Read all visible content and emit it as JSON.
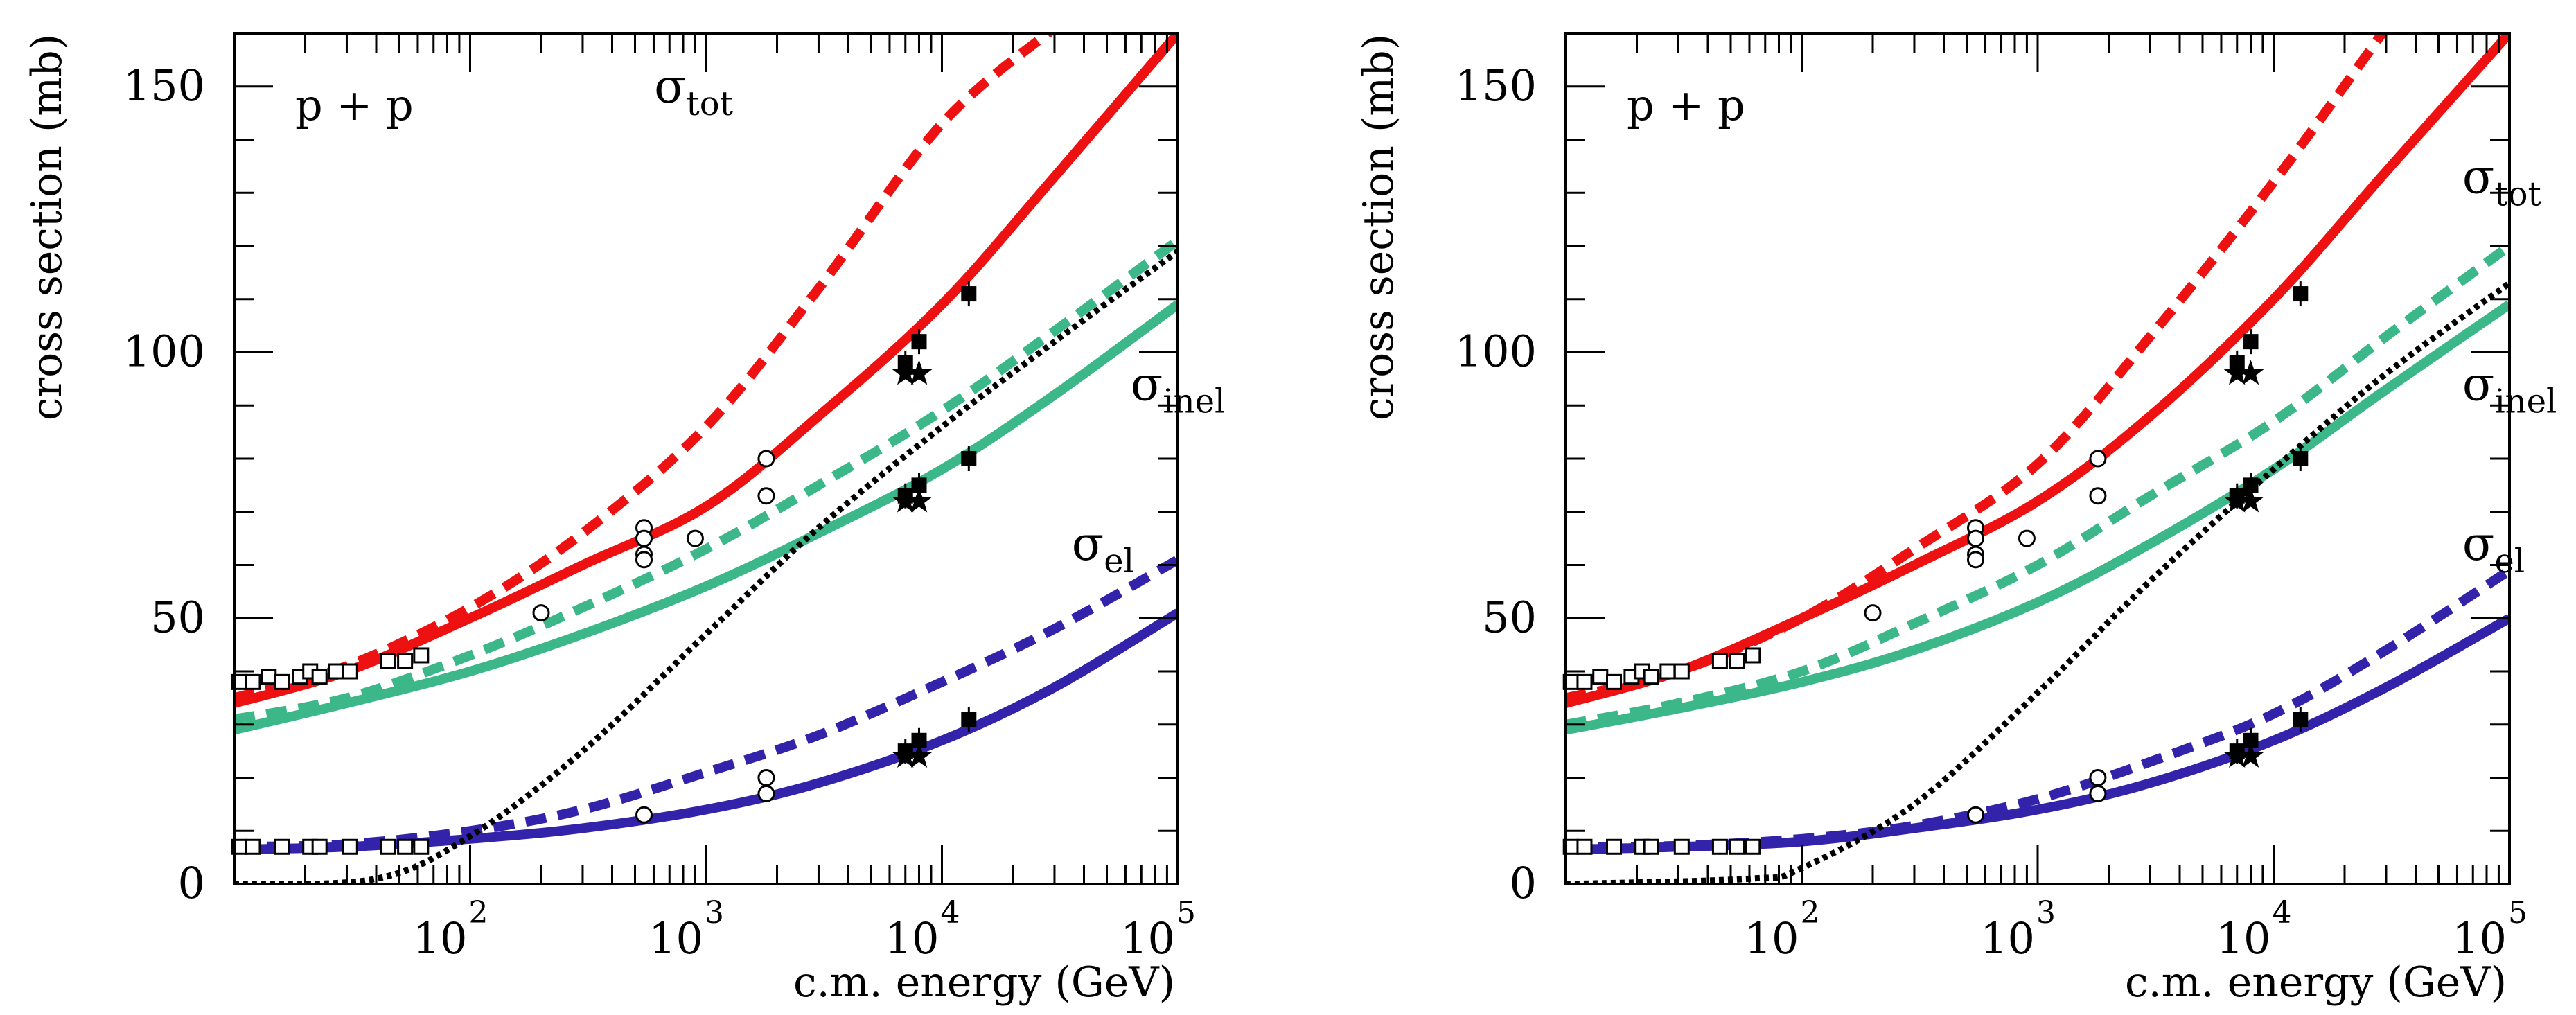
{
  "chart_data": [
    {
      "type": "line",
      "id": "left",
      "panel_label": "p + p",
      "xlabel": "c.m. energy (GeV)",
      "ylabel": "cross section (mb)",
      "x_scale": "log",
      "xlim": [
        10,
        100000
      ],
      "ylim": [
        0,
        160
      ],
      "x_tick_labels": [
        {
          "value": 100,
          "base": "10",
          "exp": "2"
        },
        {
          "value": 1000,
          "base": "10",
          "exp": "3"
        },
        {
          "value": 10000,
          "base": "10",
          "exp": "4"
        },
        {
          "value": 100000,
          "base": "10",
          "exp": "5"
        }
      ],
      "y_ticks": [
        0,
        50,
        100,
        150
      ],
      "curve_labels": [
        {
          "base": "σ",
          "sub": "tot",
          "at": [
            2.78,
            147
          ],
          "color": "#000000"
        },
        {
          "base": "σ",
          "sub": "inel",
          "at": [
            4.8,
            91
          ],
          "color": "#000000"
        },
        {
          "base": "σ",
          "sub": "el",
          "at": [
            4.55,
            61
          ],
          "color": "#000000"
        }
      ],
      "series": [
        {
          "name": "sigma_tot solid",
          "color": "#ee1111",
          "style": "solid",
          "x": [
            10,
            30,
            100,
            300,
            1000,
            3000,
            10000,
            30000,
            100000
          ],
          "values": [
            34,
            40,
            50,
            60,
            71,
            88,
            109,
            133,
            160
          ]
        },
        {
          "name": "sigma_tot dashed",
          "color": "#ee1111",
          "style": "dashed",
          "x": [
            10,
            30,
            100,
            300,
            1000,
            3000,
            10000,
            30000
          ],
          "values": [
            35,
            41,
            52,
            66,
            86,
            112,
            143,
            161
          ]
        },
        {
          "name": "sigma_inel solid",
          "color": "#3bb78a",
          "style": "solid",
          "x": [
            10,
            30,
            100,
            300,
            1000,
            3000,
            10000,
            30000,
            100000
          ],
          "values": [
            29,
            34,
            40,
            47,
            56,
            66,
            78,
            92,
            109
          ]
        },
        {
          "name": "sigma_inel dashed",
          "color": "#3bb78a",
          "style": "dashed",
          "x": [
            10,
            30,
            100,
            300,
            1000,
            3000,
            10000,
            30000,
            100000
          ],
          "values": [
            31,
            35,
            43,
            52,
            63,
            75,
            89,
            104,
            121
          ]
        },
        {
          "name": "sigma_el solid",
          "color": "#3322aa",
          "style": "solid",
          "x": [
            10,
            30,
            100,
            300,
            1000,
            3000,
            10000,
            30000,
            100000
          ],
          "values": [
            6.5,
            7,
            8.5,
            10.5,
            14,
            19,
            27,
            37,
            51
          ]
        },
        {
          "name": "sigma_el dashed",
          "color": "#3322aa",
          "style": "dashed",
          "x": [
            10,
            30,
            100,
            300,
            1000,
            3000,
            10000,
            30000,
            100000
          ],
          "values": [
            7,
            7.5,
            10,
            14,
            21,
            28,
            38,
            48,
            61
          ]
        },
        {
          "name": "black dotted",
          "color": "#000000",
          "style": "dotted",
          "x": [
            10,
            40,
            100,
            300,
            1000,
            3000,
            10000,
            30000,
            100000
          ],
          "values": [
            0,
            1,
            9,
            25,
            47,
            67,
            86,
            102,
            119
          ]
        }
      ],
      "data_points": [
        {
          "marker": "open-circle",
          "x": 200,
          "y": 51
        },
        {
          "marker": "open-circle",
          "x": 546,
          "y": 67
        },
        {
          "marker": "open-circle",
          "x": 546,
          "y": 65
        },
        {
          "marker": "open-circle",
          "x": 546,
          "y": 62
        },
        {
          "marker": "open-circle",
          "x": 546,
          "y": 61
        },
        {
          "marker": "open-circle",
          "x": 900,
          "y": 65
        },
        {
          "marker": "open-circle",
          "x": 1800,
          "y": 80
        },
        {
          "marker": "open-circle",
          "x": 1800,
          "y": 73
        },
        {
          "marker": "open-circle",
          "x": 546,
          "y": 13
        },
        {
          "marker": "open-circle",
          "x": 1800,
          "y": 20
        },
        {
          "marker": "open-circle",
          "x": 1800,
          "y": 17
        },
        {
          "marker": "filled-square",
          "x": 7000,
          "y": 98
        },
        {
          "marker": "filled-square",
          "x": 8000,
          "y": 102
        },
        {
          "marker": "filled-square",
          "x": 13000,
          "y": 111
        },
        {
          "marker": "filled-square",
          "x": 7000,
          "y": 73
        },
        {
          "marker": "filled-square",
          "x": 8000,
          "y": 75
        },
        {
          "marker": "filled-square",
          "x": 13000,
          "y": 80
        },
        {
          "marker": "filled-square",
          "x": 7000,
          "y": 25
        },
        {
          "marker": "filled-square",
          "x": 8000,
          "y": 27
        },
        {
          "marker": "filled-square",
          "x": 13000,
          "y": 31
        },
        {
          "marker": "star",
          "x": 7000,
          "y": 96
        },
        {
          "marker": "star",
          "x": 8000,
          "y": 96
        },
        {
          "marker": "star",
          "x": 7000,
          "y": 72
        },
        {
          "marker": "star",
          "x": 8000,
          "y": 72
        },
        {
          "marker": "star",
          "x": 7000,
          "y": 24
        },
        {
          "marker": "star",
          "x": 8000,
          "y": 24
        },
        {
          "marker": "open-square",
          "x": 10.5,
          "y": 38
        },
        {
          "marker": "open-square",
          "x": 12,
          "y": 38
        },
        {
          "marker": "open-square",
          "x": 14,
          "y": 39
        },
        {
          "marker": "open-square",
          "x": 16,
          "y": 38
        },
        {
          "marker": "open-square",
          "x": 19,
          "y": 39
        },
        {
          "marker": "open-square",
          "x": 21,
          "y": 40
        },
        {
          "marker": "open-square",
          "x": 23,
          "y": 39
        },
        {
          "marker": "open-square",
          "x": 27,
          "y": 40
        },
        {
          "marker": "open-square",
          "x": 31,
          "y": 40
        },
        {
          "marker": "open-square",
          "x": 45,
          "y": 42
        },
        {
          "marker": "open-square",
          "x": 53,
          "y": 42
        },
        {
          "marker": "open-square",
          "x": 62,
          "y": 43
        },
        {
          "marker": "open-square",
          "x": 10.5,
          "y": 7
        },
        {
          "marker": "open-square",
          "x": 12,
          "y": 7
        },
        {
          "marker": "open-square",
          "x": 16,
          "y": 7
        },
        {
          "marker": "open-square",
          "x": 21,
          "y": 7
        },
        {
          "marker": "open-square",
          "x": 23,
          "y": 7
        },
        {
          "marker": "open-square",
          "x": 31,
          "y": 7
        },
        {
          "marker": "open-square",
          "x": 45,
          "y": 7
        },
        {
          "marker": "open-square",
          "x": 53,
          "y": 7
        },
        {
          "marker": "open-square",
          "x": 62,
          "y": 7
        }
      ]
    },
    {
      "type": "line",
      "id": "right",
      "panel_label": "p + p",
      "xlabel": "c.m. energy (GeV)",
      "ylabel": "cross section (mb)",
      "x_scale": "log",
      "xlim": [
        10,
        100000
      ],
      "ylim": [
        0,
        160
      ],
      "x_tick_labels": [
        {
          "value": 100,
          "base": "10",
          "exp": "2"
        },
        {
          "value": 1000,
          "base": "10",
          "exp": "3"
        },
        {
          "value": 10000,
          "base": "10",
          "exp": "4"
        },
        {
          "value": 100000,
          "base": "10",
          "exp": "5"
        }
      ],
      "y_ticks": [
        0,
        50,
        100,
        150
      ],
      "curve_labels": [
        {
          "base": "σ",
          "sub": "tot",
          "at": [
            4.8,
            130
          ],
          "color": "#000000"
        },
        {
          "base": "σ",
          "sub": "inel",
          "at": [
            4.8,
            91
          ],
          "color": "#000000"
        },
        {
          "base": "σ",
          "sub": "el",
          "at": [
            4.8,
            61
          ],
          "color": "#000000"
        }
      ],
      "series": [
        {
          "name": "sigma_tot solid",
          "color": "#ee1111",
          "style": "solid",
          "x": [
            10,
            30,
            100,
            300,
            1000,
            3000,
            10000,
            30000,
            100000
          ],
          "values": [
            34,
            40,
            50,
            60,
            72,
            88,
            110,
            134,
            160
          ]
        },
        {
          "name": "sigma_tot dashed",
          "color": "#ee1111",
          "style": "dashed",
          "x": [
            10,
            30,
            100,
            300,
            1000,
            3000,
            10000,
            30000
          ],
          "values": [
            35,
            40,
            50,
            63,
            79,
            103,
            132,
            161
          ]
        },
        {
          "name": "sigma_inel solid",
          "color": "#3bb78a",
          "style": "solid",
          "x": [
            10,
            30,
            100,
            300,
            1000,
            3000,
            10000,
            30000,
            100000
          ],
          "values": [
            29,
            33,
            38,
            44,
            53,
            64,
            78,
            93,
            109
          ]
        },
        {
          "name": "sigma_inel dashed",
          "color": "#3bb78a",
          "style": "dashed",
          "x": [
            10,
            30,
            100,
            300,
            1000,
            3000,
            10000,
            30000,
            100000
          ],
          "values": [
            30,
            34,
            40,
            49,
            60,
            73,
            87,
            103,
            120
          ]
        },
        {
          "name": "sigma_el solid",
          "color": "#3322aa",
          "style": "solid",
          "x": [
            10,
            30,
            100,
            300,
            1000,
            3000,
            10000,
            30000,
            100000
          ],
          "values": [
            6.5,
            7,
            8,
            10.5,
            14,
            19,
            27,
            37,
            50
          ]
        },
        {
          "name": "sigma_el dashed",
          "color": "#3322aa",
          "style": "dashed",
          "x": [
            10,
            30,
            100,
            300,
            1000,
            3000,
            10000,
            30000,
            100000
          ],
          "values": [
            7,
            7.2,
            8.5,
            11,
            16,
            23,
            32,
            44,
            59
          ]
        },
        {
          "name": "black dotted",
          "color": "#000000",
          "style": "dotted",
          "x": [
            10,
            60,
            100,
            300,
            1000,
            3000,
            10000,
            30000,
            100000
          ],
          "values": [
            0,
            1,
            3,
            15,
            36,
            57,
            78,
            96,
            113
          ]
        }
      ],
      "data_points": [
        {
          "marker": "open-circle",
          "x": 200,
          "y": 51
        },
        {
          "marker": "open-circle",
          "x": 546,
          "y": 67
        },
        {
          "marker": "open-circle",
          "x": 546,
          "y": 65
        },
        {
          "marker": "open-circle",
          "x": 546,
          "y": 62
        },
        {
          "marker": "open-circle",
          "x": 546,
          "y": 61
        },
        {
          "marker": "open-circle",
          "x": 900,
          "y": 65
        },
        {
          "marker": "open-circle",
          "x": 1800,
          "y": 80
        },
        {
          "marker": "open-circle",
          "x": 1800,
          "y": 73
        },
        {
          "marker": "open-circle",
          "x": 546,
          "y": 13
        },
        {
          "marker": "open-circle",
          "x": 1800,
          "y": 20
        },
        {
          "marker": "open-circle",
          "x": 1800,
          "y": 17
        },
        {
          "marker": "filled-square",
          "x": 7000,
          "y": 98
        },
        {
          "marker": "filled-square",
          "x": 8000,
          "y": 102
        },
        {
          "marker": "filled-square",
          "x": 13000,
          "y": 111
        },
        {
          "marker": "filled-square",
          "x": 7000,
          "y": 73
        },
        {
          "marker": "filled-square",
          "x": 8000,
          "y": 75
        },
        {
          "marker": "filled-square",
          "x": 13000,
          "y": 80
        },
        {
          "marker": "filled-square",
          "x": 7000,
          "y": 25
        },
        {
          "marker": "filled-square",
          "x": 8000,
          "y": 27
        },
        {
          "marker": "filled-square",
          "x": 13000,
          "y": 31
        },
        {
          "marker": "star",
          "x": 7000,
          "y": 96
        },
        {
          "marker": "star",
          "x": 8000,
          "y": 96
        },
        {
          "marker": "star",
          "x": 7000,
          "y": 72
        },
        {
          "marker": "star",
          "x": 8000,
          "y": 72
        },
        {
          "marker": "star",
          "x": 7000,
          "y": 24
        },
        {
          "marker": "star",
          "x": 8000,
          "y": 24
        },
        {
          "marker": "open-square",
          "x": 10.5,
          "y": 38
        },
        {
          "marker": "open-square",
          "x": 12,
          "y": 38
        },
        {
          "marker": "open-square",
          "x": 14,
          "y": 39
        },
        {
          "marker": "open-square",
          "x": 16,
          "y": 38
        },
        {
          "marker": "open-square",
          "x": 19,
          "y": 39
        },
        {
          "marker": "open-square",
          "x": 21,
          "y": 40
        },
        {
          "marker": "open-square",
          "x": 23,
          "y": 39
        },
        {
          "marker": "open-square",
          "x": 27,
          "y": 40
        },
        {
          "marker": "open-square",
          "x": 31,
          "y": 40
        },
        {
          "marker": "open-square",
          "x": 45,
          "y": 42
        },
        {
          "marker": "open-square",
          "x": 53,
          "y": 42
        },
        {
          "marker": "open-square",
          "x": 62,
          "y": 43
        },
        {
          "marker": "open-square",
          "x": 10.5,
          "y": 7
        },
        {
          "marker": "open-square",
          "x": 12,
          "y": 7
        },
        {
          "marker": "open-square",
          "x": 16,
          "y": 7
        },
        {
          "marker": "open-square",
          "x": 21,
          "y": 7
        },
        {
          "marker": "open-square",
          "x": 23,
          "y": 7
        },
        {
          "marker": "open-square",
          "x": 31,
          "y": 7
        },
        {
          "marker": "open-square",
          "x": 45,
          "y": 7
        },
        {
          "marker": "open-square",
          "x": 53,
          "y": 7
        },
        {
          "marker": "open-square",
          "x": 62,
          "y": 7
        }
      ]
    }
  ]
}
